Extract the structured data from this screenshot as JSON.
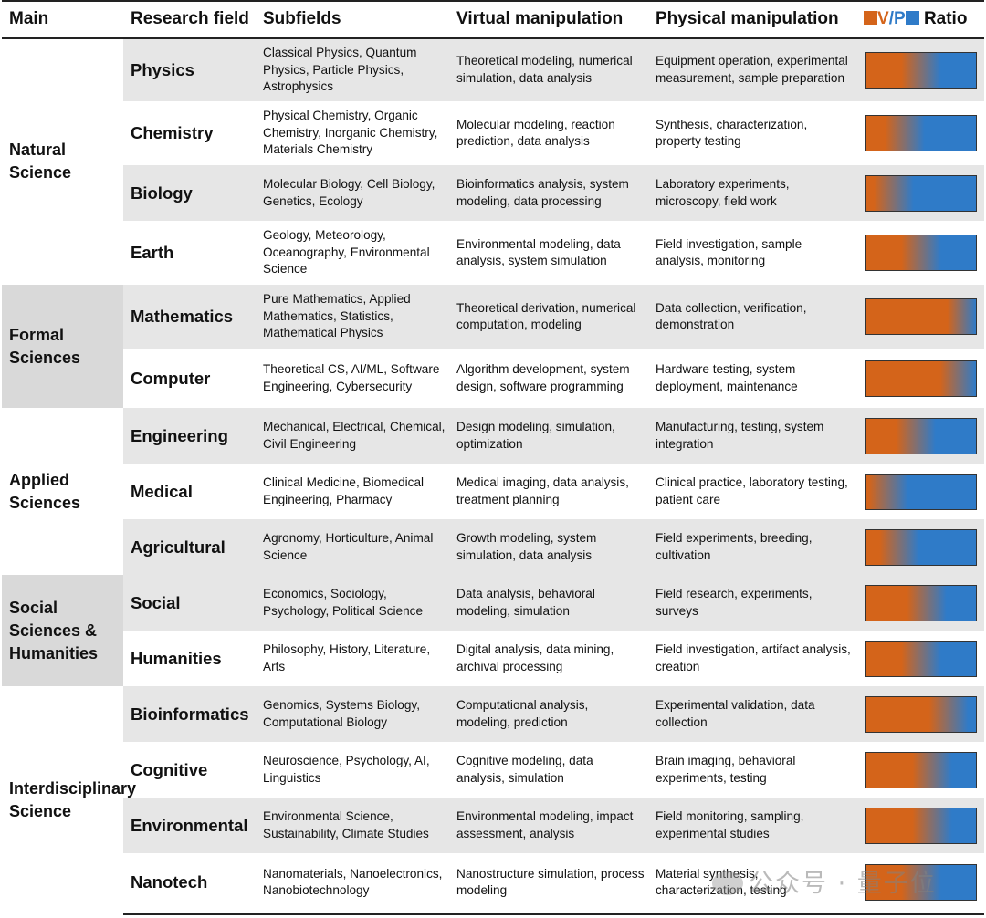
{
  "header": {
    "main": "Main",
    "field": "Research field",
    "sub": "Subfields",
    "virt": "Virtual manipulation",
    "phys": "Physical manipulation",
    "ratio_v": "V",
    "ratio_slash": "/",
    "ratio_p": "P",
    "ratio_word": "Ratio"
  },
  "colors": {
    "virtual": "#d4641a",
    "physical": "#2f7bc8"
  },
  "groups": [
    {
      "label": "Natural Science",
      "rows": [
        {
          "field": "Physics",
          "sub": "Classical Physics, Quantum Physics, Particle Physics, Astrophysics",
          "virt": "Theoretical modeling, numerical simulation, data analysis",
          "phys": "Equipment operation, experimental measurement, sample preparation",
          "ratio": 0.5
        },
        {
          "field": "Chemistry",
          "sub": "Physical Chemistry, Organic Chemistry, Inorganic Chemistry, Materials Chemistry",
          "virt": "Molecular modeling, reaction prediction, data analysis",
          "phys": "Synthesis, characterization, property testing",
          "ratio": 0.35
        },
        {
          "field": "Biology",
          "sub": "Molecular Biology, Cell Biology, Genetics, Ecology",
          "virt": "Bioinformatics analysis, system modeling, data processing",
          "phys": "Laboratory experiments, microscopy, field work",
          "ratio": 0.25
        },
        {
          "field": "Earth",
          "sub": "Geology, Meteorology, Oceanography, Environmental Science",
          "virt": "Environmental modeling, data analysis, system simulation",
          "phys": "Field investigation, sample analysis, monitoring",
          "ratio": 0.5
        }
      ]
    },
    {
      "label": "Formal Sciences",
      "rows": [
        {
          "field": "Mathematics",
          "sub": "Pure Mathematics, Applied Mathematics, Statistics, Mathematical Physics",
          "virt": "Theoretical derivation, numerical computation, modeling",
          "phys": "Data collection, verification, demonstration",
          "ratio": 0.92
        },
        {
          "field": "Computer",
          "sub": "Theoretical CS, AI/ML, Software Engineering, Cybersecurity",
          "virt": "Algorithm development, system design, software programming",
          "phys": "Hardware testing, system deployment, maintenance",
          "ratio": 0.85
        }
      ]
    },
    {
      "label": "Applied Sciences",
      "rows": [
        {
          "field": "Engineering",
          "sub": "Mechanical, Electrical, Chemical, Civil Engineering",
          "virt": "Design modeling, simulation, optimization",
          "phys": "Manufacturing, testing, system integration",
          "ratio": 0.45
        },
        {
          "field": "Medical",
          "sub": "Clinical Medicine, Biomedical Engineering, Pharmacy",
          "virt": "Medical imaging, data analysis, treatment planning",
          "phys": "Clinical practice, laboratory testing, patient care",
          "ratio": 0.2
        },
        {
          "field": "Agricultural",
          "sub": "Agronomy, Horticulture, Animal Science",
          "virt": "Growth modeling, system simulation, data analysis",
          "phys": "Field experiments, breeding, cultivation",
          "ratio": 0.3
        }
      ]
    },
    {
      "label": "Social Sciences & Humanities",
      "rows": [
        {
          "field": "Social",
          "sub": "Economics, Sociology, Psychology, Political Science",
          "virt": "Data analysis, behavioral modeling, simulation",
          "phys": "Field research, experiments, surveys",
          "ratio": 0.55
        },
        {
          "field": "Humanities",
          "sub": "Philosophy, History, Literature, Arts",
          "virt": "Digital analysis, data mining, archival processing",
          "phys": "Field investigation, artifact analysis, creation",
          "ratio": 0.5
        }
      ]
    },
    {
      "label": "Interdisciplinary Science",
      "rows": [
        {
          "field": "Bioinformatics",
          "sub": "Genomics, Systems Biology, Computational Biology",
          "virt": "Computational analysis, modeling, prediction",
          "phys": "Experimental validation, data collection",
          "ratio": 0.75
        },
        {
          "field": "Cognitive",
          "sub": "Neuroscience, Psychology, AI, Linguistics",
          "virt": "Cognitive modeling, data analysis, simulation",
          "phys": "Brain imaging, behavioral experiments, testing",
          "ratio": 0.6
        },
        {
          "field": "Environmental",
          "sub": "Environmental Science, Sustainability, Climate Studies",
          "virt": "Environmental modeling, impact assessment, analysis",
          "phys": "Field monitoring, sampling, experimental studies",
          "ratio": 0.6
        },
        {
          "field": "Nanotech",
          "sub": "Nanomaterials, Nanoelectronics, Nanobiotechnology",
          "virt": "Nanostructure simulation, process modeling",
          "phys": "Material synthesis, characterization, testing",
          "ratio": 0.5
        }
      ]
    }
  ],
  "watermark": "公众号 · 量子位"
}
